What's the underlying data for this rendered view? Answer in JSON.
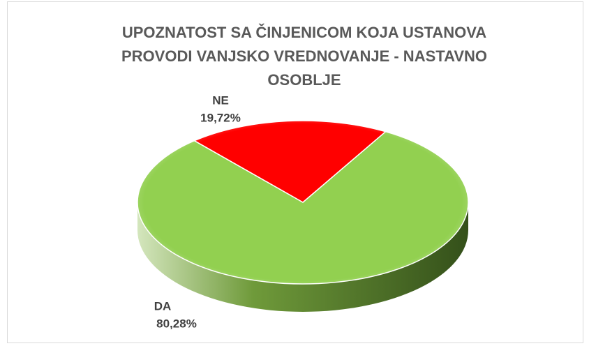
{
  "chart_data": {
    "type": "pie",
    "title": "UPOZNATOST SA ČINJENICOM KOJA USTANOVA PROVODI VANJSKO VREDNOVANJE - NASTAVNO OSOBLJE",
    "categories": [
      "DA",
      "NE"
    ],
    "values": [
      80.28,
      19.72
    ],
    "value_labels": [
      "80,28%",
      "19,72%"
    ],
    "colors": [
      "#92d050",
      "#ff0000"
    ]
  }
}
